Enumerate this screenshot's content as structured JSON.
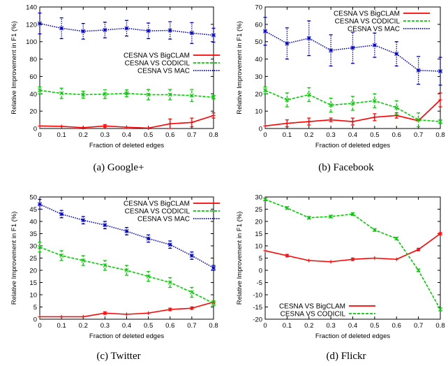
{
  "chart_data": [
    {
      "type": "line",
      "caption": "(a) Google+",
      "xlabel": "Fraction of deleted edges",
      "ylabel": "Relative Improvement in F1 (%)",
      "x": [
        0,
        0.1,
        0.2,
        0.3,
        0.4,
        0.5,
        0.6,
        0.7,
        0.8
      ],
      "xlim": [
        0,
        0.8
      ],
      "ylim": [
        0,
        140
      ],
      "yticks": [
        0,
        20,
        40,
        60,
        80,
        100,
        120,
        140
      ],
      "legend_position": "middle-right",
      "series": [
        {
          "name": "CESNA VS BigCLAM",
          "color": "#ff0000",
          "style": "solid",
          "marker": "+",
          "values": [
            3,
            2.5,
            1,
            3,
            1.5,
            0.5,
            5.5,
            7,
            15
          ],
          "errors": [
            0,
            0,
            0,
            1.5,
            0,
            0,
            5.5,
            5,
            3
          ]
        },
        {
          "name": "CESNA VS CODICIL",
          "color": "#00cc00",
          "style": "dashed",
          "marker": "x",
          "values": [
            44,
            40.5,
            39,
            39.5,
            40.5,
            39,
            39,
            38,
            36
          ],
          "errors": [
            4,
            6,
            4,
            5,
            4,
            6,
            6,
            7,
            2
          ]
        },
        {
          "name": "CESNA VS MAC",
          "color": "#0000cc",
          "style": "dotted",
          "marker": "*",
          "values": [
            121,
            115.5,
            112,
            113.5,
            115.5,
            112.5,
            113,
            110,
            107.5
          ],
          "errors": [
            12,
            12,
            9,
            9,
            9,
            9,
            10,
            12,
            8
          ]
        }
      ]
    },
    {
      "type": "line",
      "caption": "(b) Facebook",
      "xlabel": "Fraction of deleted edges",
      "ylabel": "Relative Improvement in F1 (%)",
      "x": [
        0,
        0.1,
        0.2,
        0.3,
        0.4,
        0.5,
        0.6,
        0.7,
        0.8
      ],
      "xlim": [
        0,
        0.8
      ],
      "ylim": [
        0,
        70
      ],
      "yticks": [
        0,
        10,
        20,
        30,
        40,
        50,
        60,
        70
      ],
      "legend_position": "top-right",
      "series": [
        {
          "name": "CESNA VS BigCLAM",
          "color": "#ff0000",
          "style": "solid",
          "marker": "+",
          "values": [
            1.5,
            3,
            4,
            5,
            4,
            6.5,
            7.5,
            4.5,
            16.5
          ],
          "errors": [
            0,
            2,
            2,
            1,
            2,
            2,
            1.5,
            0,
            4
          ]
        },
        {
          "name": "CESNA VS CODICIL",
          "color": "#00cc00",
          "style": "dashed",
          "marker": "x",
          "values": [
            22,
            16.5,
            19.5,
            13.5,
            14.5,
            16,
            12,
            5,
            4
          ],
          "errors": [
            2,
            4,
            4,
            4,
            4,
            4,
            4,
            4,
            1
          ]
        },
        {
          "name": "CESNA VS MAC",
          "color": "#0000cc",
          "style": "dotted",
          "marker": "*",
          "values": [
            56,
            49,
            52,
            45,
            46.5,
            48,
            43,
            33.5,
            33
          ],
          "errors": [
            8,
            9,
            10,
            9,
            9,
            7,
            7,
            8,
            8
          ]
        }
      ]
    },
    {
      "type": "line",
      "caption": "(c) Twitter",
      "xlabel": "Fraction of deleted edges",
      "ylabel": "Relative Improvement in F1 (%)",
      "x": [
        0,
        0.1,
        0.2,
        0.3,
        0.4,
        0.5,
        0.6,
        0.7,
        0.8
      ],
      "xlim": [
        0,
        0.8
      ],
      "ylim": [
        0,
        50
      ],
      "yticks": [
        0,
        5,
        10,
        15,
        20,
        25,
        30,
        35,
        40,
        45,
        50
      ],
      "legend_position": "top-right",
      "series": [
        {
          "name": "CESNA VS BigCLAM",
          "color": "#ff0000",
          "style": "solid",
          "marker": "+",
          "values": [
            1,
            1,
            1,
            2.5,
            2,
            2.5,
            4,
            4.5,
            7
          ],
          "errors": [
            0,
            0,
            0,
            0.5,
            0,
            0,
            0.5,
            0.5,
            0.5
          ]
        },
        {
          "name": "CESNA VS CODICIL",
          "color": "#00cc00",
          "style": "dashed",
          "marker": "x",
          "values": [
            29.5,
            26,
            24,
            22,
            20,
            17.5,
            15,
            11,
            6.5
          ],
          "errors": [
            2,
            2,
            2,
            2,
            2,
            2,
            2,
            2,
            1
          ]
        },
        {
          "name": "CESNA VS MAC",
          "color": "#0000cc",
          "style": "dotted",
          "marker": "*",
          "values": [
            47,
            43,
            40.5,
            38.5,
            36,
            33,
            30.5,
            26,
            21
          ],
          "errors": [
            2,
            1.5,
            1.5,
            1.5,
            1.5,
            1.5,
            1.5,
            1.5,
            1
          ]
        }
      ]
    },
    {
      "type": "line",
      "caption": "(d) Flickr",
      "xlabel": "Fraction of deleted edges",
      "ylabel": "Relative Improvement in F1 (%)",
      "x": [
        0,
        0.1,
        0.2,
        0.3,
        0.4,
        0.5,
        0.6,
        0.7,
        0.8
      ],
      "xlim": [
        0,
        0.8
      ],
      "ylim": [
        -20,
        30
      ],
      "yticks": [
        -20,
        -15,
        -10,
        -5,
        0,
        5,
        10,
        15,
        20,
        25,
        30
      ],
      "legend_position": "bottom-left",
      "series": [
        {
          "name": "CESNA VS BigCLAM",
          "color": "#ff0000",
          "style": "solid",
          "marker": "+",
          "values": [
            8,
            6,
            4,
            3.5,
            4.5,
            5,
            4.5,
            8.5,
            15
          ],
          "errors": [
            0,
            0.5,
            0,
            0,
            0.5,
            0,
            0,
            0.5,
            0.5
          ]
        },
        {
          "name": "CESNA VS CODICIL",
          "color": "#00cc00",
          "style": "dashed",
          "marker": "x",
          "values": [
            29,
            25.5,
            21.5,
            22,
            23,
            16.5,
            13,
            0,
            -16
          ],
          "errors": [
            0.5,
            0.5,
            0.5,
            0.5,
            0.5,
            0.5,
            0.5,
            0.5,
            0.5
          ]
        }
      ]
    }
  ]
}
